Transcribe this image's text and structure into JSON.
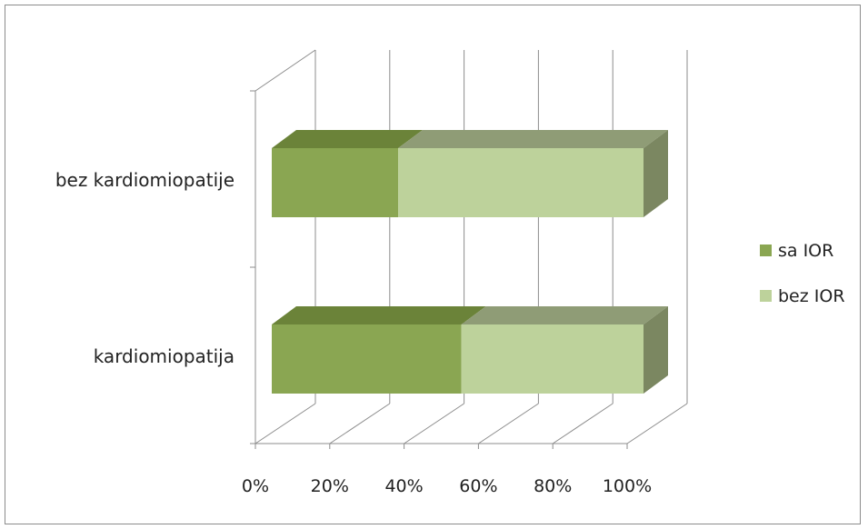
{
  "chart_data": {
    "type": "bar",
    "orientation": "horizontal",
    "stacked": "100%",
    "three_d": true,
    "categories": [
      "kardiomiopatija",
      "bez kardiomiopatije"
    ],
    "series": [
      {
        "name": "sa IOR",
        "values": [
          51,
          34
        ],
        "color": "#8aa652",
        "top_color": "#6b8339",
        "side_color": "#6b7f45"
      },
      {
        "name": "bez IOR",
        "values": [
          49,
          66
        ],
        "color": "#bdd29b",
        "top_color": "#8f9c76",
        "side_color": "#7b8761"
      }
    ],
    "x_ticks": [
      "0%",
      "20%",
      "40%",
      "60%",
      "80%",
      "100%"
    ],
    "xlim": [
      0,
      100
    ],
    "grid": true,
    "legend_position": "right",
    "title": "",
    "xlabel": "",
    "ylabel": ""
  }
}
